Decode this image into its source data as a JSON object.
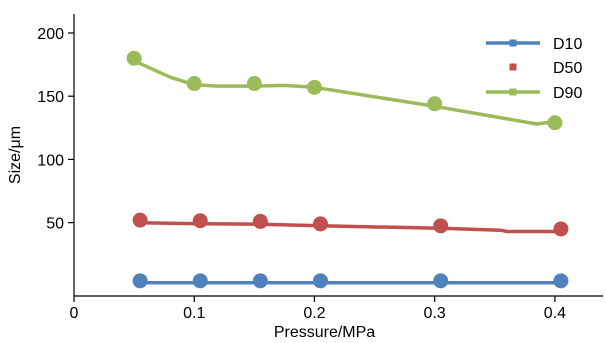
{
  "chart_data": {
    "type": "line",
    "title": "",
    "xlabel": "Pressure/MPa",
    "ylabel": "Size/μm",
    "x_ticks": [
      "0",
      "0.1",
      "0.2",
      "0.3",
      "0.4"
    ],
    "x_tick_values": [
      0,
      0.1,
      0.2,
      0.3,
      0.4
    ],
    "y_ticks": [
      "50",
      "100",
      "150",
      "200"
    ],
    "y_tick_values": [
      50,
      100,
      150,
      200
    ],
    "xlim": [
      0,
      0.44
    ],
    "ylim": [
      -8,
      215
    ],
    "grid": false,
    "legend_position": "top-right",
    "series": [
      {
        "name": "D10",
        "color": "#4f81bd",
        "points": {
          "x": [
            0.055,
            0.105,
            0.155,
            0.205,
            0.305,
            0.405
          ],
          "y": [
            4,
            4,
            4,
            4,
            4,
            4
          ]
        },
        "trend": {
          "x": [
            0.055,
            0.405
          ],
          "y": [
            2.5,
            2.5
          ]
        }
      },
      {
        "name": "D50",
        "color": "#c0504d",
        "points": {
          "x": [
            0.055,
            0.105,
            0.155,
            0.205,
            0.305,
            0.405
          ],
          "y": [
            52,
            51.5,
            51,
            49,
            47.5,
            45
          ]
        },
        "trend": {
          "x": [
            0.055,
            0.105,
            0.155,
            0.205,
            0.305,
            0.355,
            0.36,
            0.405
          ],
          "y": [
            50,
            49.2,
            48.8,
            47.5,
            45.5,
            44,
            43,
            43
          ]
        }
      },
      {
        "name": "D90",
        "color": "#9bbb59",
        "points": {
          "x": [
            0.05,
            0.1,
            0.15,
            0.2,
            0.3,
            0.4
          ],
          "y": [
            180,
            160,
            160,
            157,
            144,
            129
          ]
        },
        "trend": {
          "x": [
            0.05,
            0.08,
            0.1,
            0.12,
            0.15,
            0.175,
            0.2,
            0.3,
            0.385,
            0.4
          ],
          "y": [
            178,
            165,
            159,
            158,
            158,
            158.5,
            157,
            142,
            128,
            130
          ]
        }
      }
    ]
  }
}
